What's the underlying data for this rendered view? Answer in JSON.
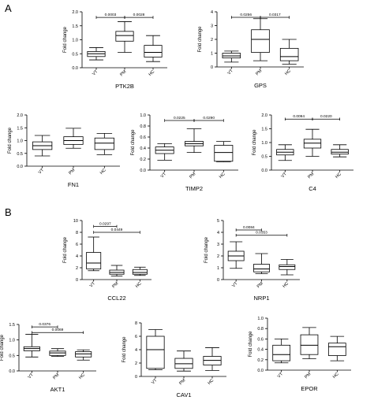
{
  "panel_labels": [
    "A",
    "B"
  ],
  "chart_data": [
    {
      "type": "box",
      "gene": "PTK2B",
      "ylabel": "Fold change",
      "categories": [
        "VT",
        "PM",
        "HC"
      ],
      "ylim": [
        0,
        2.0
      ],
      "yticks": [
        "0.0",
        "0.5",
        "1.0",
        "1.5",
        "2.0"
      ],
      "boxes": [
        {
          "min": 0.28,
          "q1": 0.4,
          "median": 0.5,
          "q3": 0.58,
          "max": 0.72
        },
        {
          "min": 0.55,
          "q1": 0.95,
          "median": 1.15,
          "q3": 1.3,
          "max": 1.65
        },
        {
          "min": 0.22,
          "q1": 0.38,
          "median": 0.55,
          "q3": 0.8,
          "max": 1.15
        }
      ],
      "pvalues": [
        {
          "from": 0,
          "to": 1,
          "y": 1.8,
          "label": "0.0003"
        },
        {
          "from": 1,
          "to": 2,
          "y": 1.8,
          "label": "0.0028"
        }
      ]
    },
    {
      "type": "box",
      "gene": "GPS",
      "ylabel": "Fold change",
      "categories": [
        "VT",
        "PM",
        "HC"
      ],
      "ylim": [
        0,
        4
      ],
      "yticks": [
        "0",
        "1",
        "2",
        "3",
        "4"
      ],
      "boxes": [
        {
          "min": 0.35,
          "q1": 0.65,
          "median": 0.8,
          "q3": 1.0,
          "max": 1.15
        },
        {
          "min": 0.45,
          "q1": 1.05,
          "median": 2.0,
          "q3": 2.7,
          "max": 3.5
        },
        {
          "min": 0.2,
          "q1": 0.45,
          "median": 0.75,
          "q3": 1.35,
          "max": 2.0
        }
      ],
      "pvalues": [
        {
          "from": 0,
          "to": 1,
          "y": 3.6,
          "label": "0.0256"
        },
        {
          "from": 1,
          "to": 2,
          "y": 3.6,
          "label": "0.0317"
        }
      ]
    },
    {
      "type": "box",
      "gene": "FN1",
      "ylabel": "Fold change",
      "categories": [
        "VT",
        "PM",
        "HC"
      ],
      "ylim": [
        0,
        2.0
      ],
      "yticks": [
        "0.0",
        "0.5",
        "1.0",
        "1.5",
        "2.0"
      ],
      "boxes": [
        {
          "min": 0.4,
          "q1": 0.65,
          "median": 0.8,
          "q3": 0.95,
          "max": 1.2
        },
        {
          "min": 0.7,
          "q1": 0.85,
          "median": 1.0,
          "q3": 1.15,
          "max": 1.48
        },
        {
          "min": 0.45,
          "q1": 0.65,
          "median": 0.9,
          "q3": 1.1,
          "max": 1.28
        }
      ],
      "pvalues": []
    },
    {
      "type": "box",
      "gene": "TIMP2",
      "ylabel": "Fold change",
      "categories": [
        "VT",
        "PM",
        "HC"
      ],
      "ylim": [
        0,
        1.0
      ],
      "yticks": [
        "0.0",
        "0.2",
        "0.4",
        "0.6",
        "0.8",
        "1.0"
      ],
      "boxes": [
        {
          "min": 0.18,
          "q1": 0.3,
          "median": 0.36,
          "q3": 0.42,
          "max": 0.48
        },
        {
          "min": 0.32,
          "q1": 0.44,
          "median": 0.48,
          "q3": 0.52,
          "max": 0.75
        },
        {
          "min": 0.15,
          "q1": 0.16,
          "median": 0.32,
          "q3": 0.45,
          "max": 0.52
        }
      ],
      "pvalues": [
        {
          "from": 0,
          "to": 1,
          "y": 0.9,
          "label": "0.0225"
        },
        {
          "from": 1,
          "to": 2,
          "y": 0.9,
          "label": "0.0290"
        }
      ]
    },
    {
      "type": "box",
      "gene": "C4",
      "ylabel": "Fold change",
      "categories": [
        "VT",
        "PM",
        "HC"
      ],
      "ylim": [
        0,
        2.0
      ],
      "yticks": [
        "0.0",
        "0.5",
        "1.0",
        "1.5",
        "2.0"
      ],
      "boxes": [
        {
          "min": 0.35,
          "q1": 0.55,
          "median": 0.65,
          "q3": 0.75,
          "max": 0.92
        },
        {
          "min": 0.5,
          "q1": 0.8,
          "median": 0.98,
          "q3": 1.12,
          "max": 1.48
        },
        {
          "min": 0.48,
          "q1": 0.58,
          "median": 0.65,
          "q3": 0.75,
          "max": 0.92
        }
      ],
      "pvalues": [
        {
          "from": 0,
          "to": 1,
          "y": 1.85,
          "label": "0.0094"
        },
        {
          "from": 1,
          "to": 2,
          "y": 1.85,
          "label": "0.0220"
        }
      ]
    },
    {
      "type": "box",
      "gene": "CCL22",
      "ylabel": "Fold change",
      "categories": [
        "VT",
        "PM",
        "HC"
      ],
      "ylim": [
        0,
        10
      ],
      "yticks": [
        "0",
        "2",
        "4",
        "6",
        "8",
        "10"
      ],
      "boxes": [
        {
          "min": 1.5,
          "q1": 1.8,
          "median": 2.8,
          "q3": 4.6,
          "max": 7.2
        },
        {
          "min": 0.6,
          "q1": 0.9,
          "median": 1.2,
          "q3": 1.6,
          "max": 2.4
        },
        {
          "min": 0.7,
          "q1": 0.9,
          "median": 1.2,
          "q3": 1.7,
          "max": 2.1
        }
      ],
      "pvalues": [
        {
          "from": 0,
          "to": 1,
          "y": 9.0,
          "label": "0.0297"
        },
        {
          "from": 0,
          "to": 2,
          "y": 8.0,
          "label": "0.0449"
        }
      ]
    },
    {
      "type": "box",
      "gene": "NRP1",
      "ylabel": "Fold change",
      "categories": [
        "VT",
        "PM",
        "HC"
      ],
      "ylim": [
        0,
        5
      ],
      "yticks": [
        "0",
        "1",
        "2",
        "3",
        "4",
        "5"
      ],
      "boxes": [
        {
          "min": 0.95,
          "q1": 1.6,
          "median": 2.0,
          "q3": 2.4,
          "max": 3.2
        },
        {
          "min": 0.5,
          "q1": 0.65,
          "median": 0.9,
          "q3": 1.3,
          "max": 2.2
        },
        {
          "min": 0.4,
          "q1": 0.85,
          "median": 1.1,
          "q3": 1.25,
          "max": 1.7
        }
      ],
      "pvalues": [
        {
          "from": 0,
          "to": 1,
          "y": 4.2,
          "label": "0.0084"
        },
        {
          "from": 0,
          "to": 2,
          "y": 3.75,
          "label": "0.0353"
        }
      ]
    },
    {
      "type": "box",
      "gene": "AKT1",
      "ylabel": "Fold change",
      "categories": [
        "VT",
        "PM",
        "HC"
      ],
      "ylim": [
        0,
        1.5
      ],
      "yticks": [
        "0.0",
        "0.5",
        "1.0",
        "1.5"
      ],
      "boxes": [
        {
          "min": 0.45,
          "q1": 0.65,
          "median": 0.72,
          "q3": 0.78,
          "max": 1.18
        },
        {
          "min": 0.47,
          "q1": 0.5,
          "median": 0.58,
          "q3": 0.64,
          "max": 0.72
        },
        {
          "min": 0.35,
          "q1": 0.45,
          "median": 0.55,
          "q3": 0.62,
          "max": 0.68
        }
      ],
      "pvalues": [
        {
          "from": 0,
          "to": 1,
          "y": 1.42,
          "label": "0.0376"
        },
        {
          "from": 0,
          "to": 2,
          "y": 1.24,
          "label": "0.0069"
        }
      ]
    },
    {
      "type": "box",
      "gene": "CAV1",
      "ylabel": "Fold change",
      "categories": [
        "VT",
        "PM",
        "HC"
      ],
      "ylim": [
        0,
        8
      ],
      "yticks": [
        "0",
        "2",
        "4",
        "6",
        "8"
      ],
      "boxes": [
        {
          "min": 1.0,
          "q1": 1.2,
          "median": 4.0,
          "q3": 6.0,
          "max": 7.0
        },
        {
          "min": 0.8,
          "q1": 1.2,
          "median": 1.9,
          "q3": 2.7,
          "max": 3.8
        },
        {
          "min": 0.9,
          "q1": 1.7,
          "median": 2.4,
          "q3": 3.0,
          "max": 4.3
        }
      ],
      "pvalues": []
    },
    {
      "type": "box",
      "gene": "EPOR",
      "ylabel": "Fold change",
      "categories": [
        "VT",
        "PM",
        "HC"
      ],
      "ylim": [
        0,
        1.0
      ],
      "yticks": [
        "0.0",
        "0.2",
        "0.4",
        "0.6",
        "0.8",
        "1.0"
      ],
      "boxes": [
        {
          "min": 0.14,
          "q1": 0.18,
          "median": 0.3,
          "q3": 0.48,
          "max": 0.6
        },
        {
          "min": 0.22,
          "q1": 0.3,
          "median": 0.48,
          "q3": 0.68,
          "max": 0.82
        },
        {
          "min": 0.18,
          "q1": 0.28,
          "median": 0.45,
          "q3": 0.52,
          "max": 0.65
        }
      ],
      "pvalues": []
    }
  ]
}
